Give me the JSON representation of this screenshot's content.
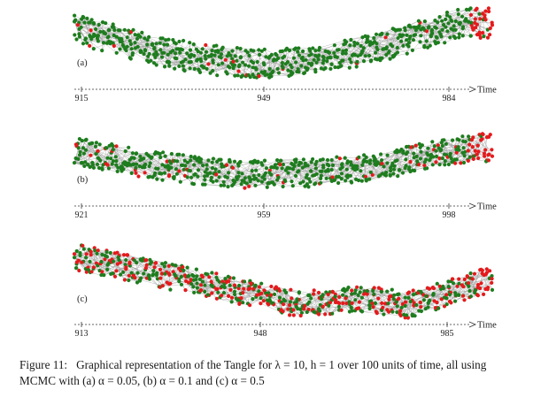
{
  "figure": {
    "caption_lead": "Figure 11:",
    "caption_text": "Graphical representation of the Tangle for λ = 10, h = 1 over 100 units of time, all using MCMC with (a) α = 0.05, (b) α = 0.1 and (c) α = 0.5",
    "axis_title": "Time",
    "colors": {
      "approved": "#1e7d1e",
      "tip": "#e41a1c",
      "edge": "#9a9a9a",
      "axis": "#333333"
    }
  },
  "panels": [
    {
      "label": "(a)",
      "alpha": "0.05",
      "ticks": [
        "915",
        "949",
        "984"
      ],
      "tip_share": 0.03
    },
    {
      "label": "(b)",
      "alpha": "0.1",
      "ticks": [
        "921",
        "959",
        "998"
      ],
      "tip_share": 0.08
    },
    {
      "label": "(c)",
      "alpha": "0.5",
      "ticks": [
        "913",
        "948",
        "985"
      ],
      "tip_share": 0.42
    }
  ]
}
